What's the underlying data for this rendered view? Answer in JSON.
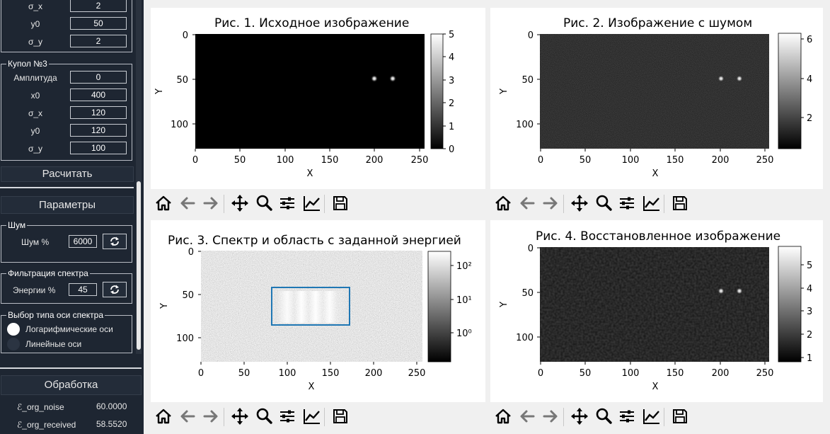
{
  "sidebar": {
    "dome2_partial": [
      {
        "label": "σ_x",
        "value": "2"
      },
      {
        "label": "y0",
        "value": "50"
      },
      {
        "label": "σ_y",
        "value": "2"
      }
    ],
    "dome3": {
      "title": "Купол №3",
      "fields": [
        {
          "label": "Амплитуда",
          "value": "0"
        },
        {
          "label": "x0",
          "value": "400"
        },
        {
          "label": "σ_x",
          "value": "120"
        },
        {
          "label": "y0",
          "value": "120"
        },
        {
          "label": "σ_y",
          "value": "100"
        }
      ]
    },
    "calculate_label": "Расчитать",
    "params_label": "Параметры",
    "noise": {
      "title": "Шум",
      "label": "Шум %",
      "value": "6000"
    },
    "filter": {
      "title": "Фильтрация спектра",
      "label": "Энергии %",
      "value": "45"
    },
    "axis_type": {
      "title": "Выбор типа оси спектра",
      "options": [
        "Логарифмические оси",
        "Линейные оси"
      ],
      "selected": 0
    },
    "processing_label": "Обработка",
    "metrics": [
      {
        "label": "ℰ_org_noise",
        "value": "60.0000"
      },
      {
        "label": "ℰ_org_received",
        "value": "58.5520"
      }
    ]
  },
  "figures": [
    {
      "title": "Рис. 1. Исходное изображение",
      "xlabel": "X",
      "ylabel": "Y",
      "xticks": [
        "0",
        "50",
        "100",
        "150",
        "200",
        "250"
      ],
      "yticks": [
        "0",
        "50",
        "100"
      ],
      "cbar_ticks": [
        "5",
        "4",
        "3",
        "2",
        "1",
        "0"
      ]
    },
    {
      "title": "Рис. 2. Изображение с шумом",
      "xlabel": "X",
      "ylabel": "Y",
      "xticks": [
        "0",
        "50",
        "100",
        "150",
        "200",
        "250"
      ],
      "yticks": [
        "0",
        "50",
        "100"
      ],
      "cbar_ticks": [
        "6",
        "4",
        "2"
      ]
    },
    {
      "title": "Рис. 3. Спектр и область с заданной энергией",
      "xlabel": "X",
      "ylabel": "Y",
      "xticks": [
        "0",
        "50",
        "100",
        "150",
        "200",
        "250"
      ],
      "yticks": [
        "0",
        "50",
        "100"
      ],
      "cbar_ticks": [
        "10²",
        "10¹",
        "10⁰"
      ]
    },
    {
      "title": "Рис. 4. Восстановленное изображение",
      "xlabel": "X",
      "ylabel": "Y",
      "xticks": [
        "0",
        "50",
        "100",
        "150",
        "200",
        "250"
      ],
      "yticks": [
        "0",
        "50",
        "100"
      ],
      "cbar_ticks": [
        "5",
        "4",
        "3",
        "2",
        "1"
      ]
    }
  ],
  "toolbar_icons": [
    "home-icon",
    "back-arrow-icon",
    "forward-arrow-icon",
    "pan-icon",
    "zoom-icon",
    "subplots-icon",
    "customize-icon",
    "save-icon"
  ],
  "colors": {
    "sidebar_bg": "#1e2632",
    "selection_rect": "#1f77b4"
  }
}
